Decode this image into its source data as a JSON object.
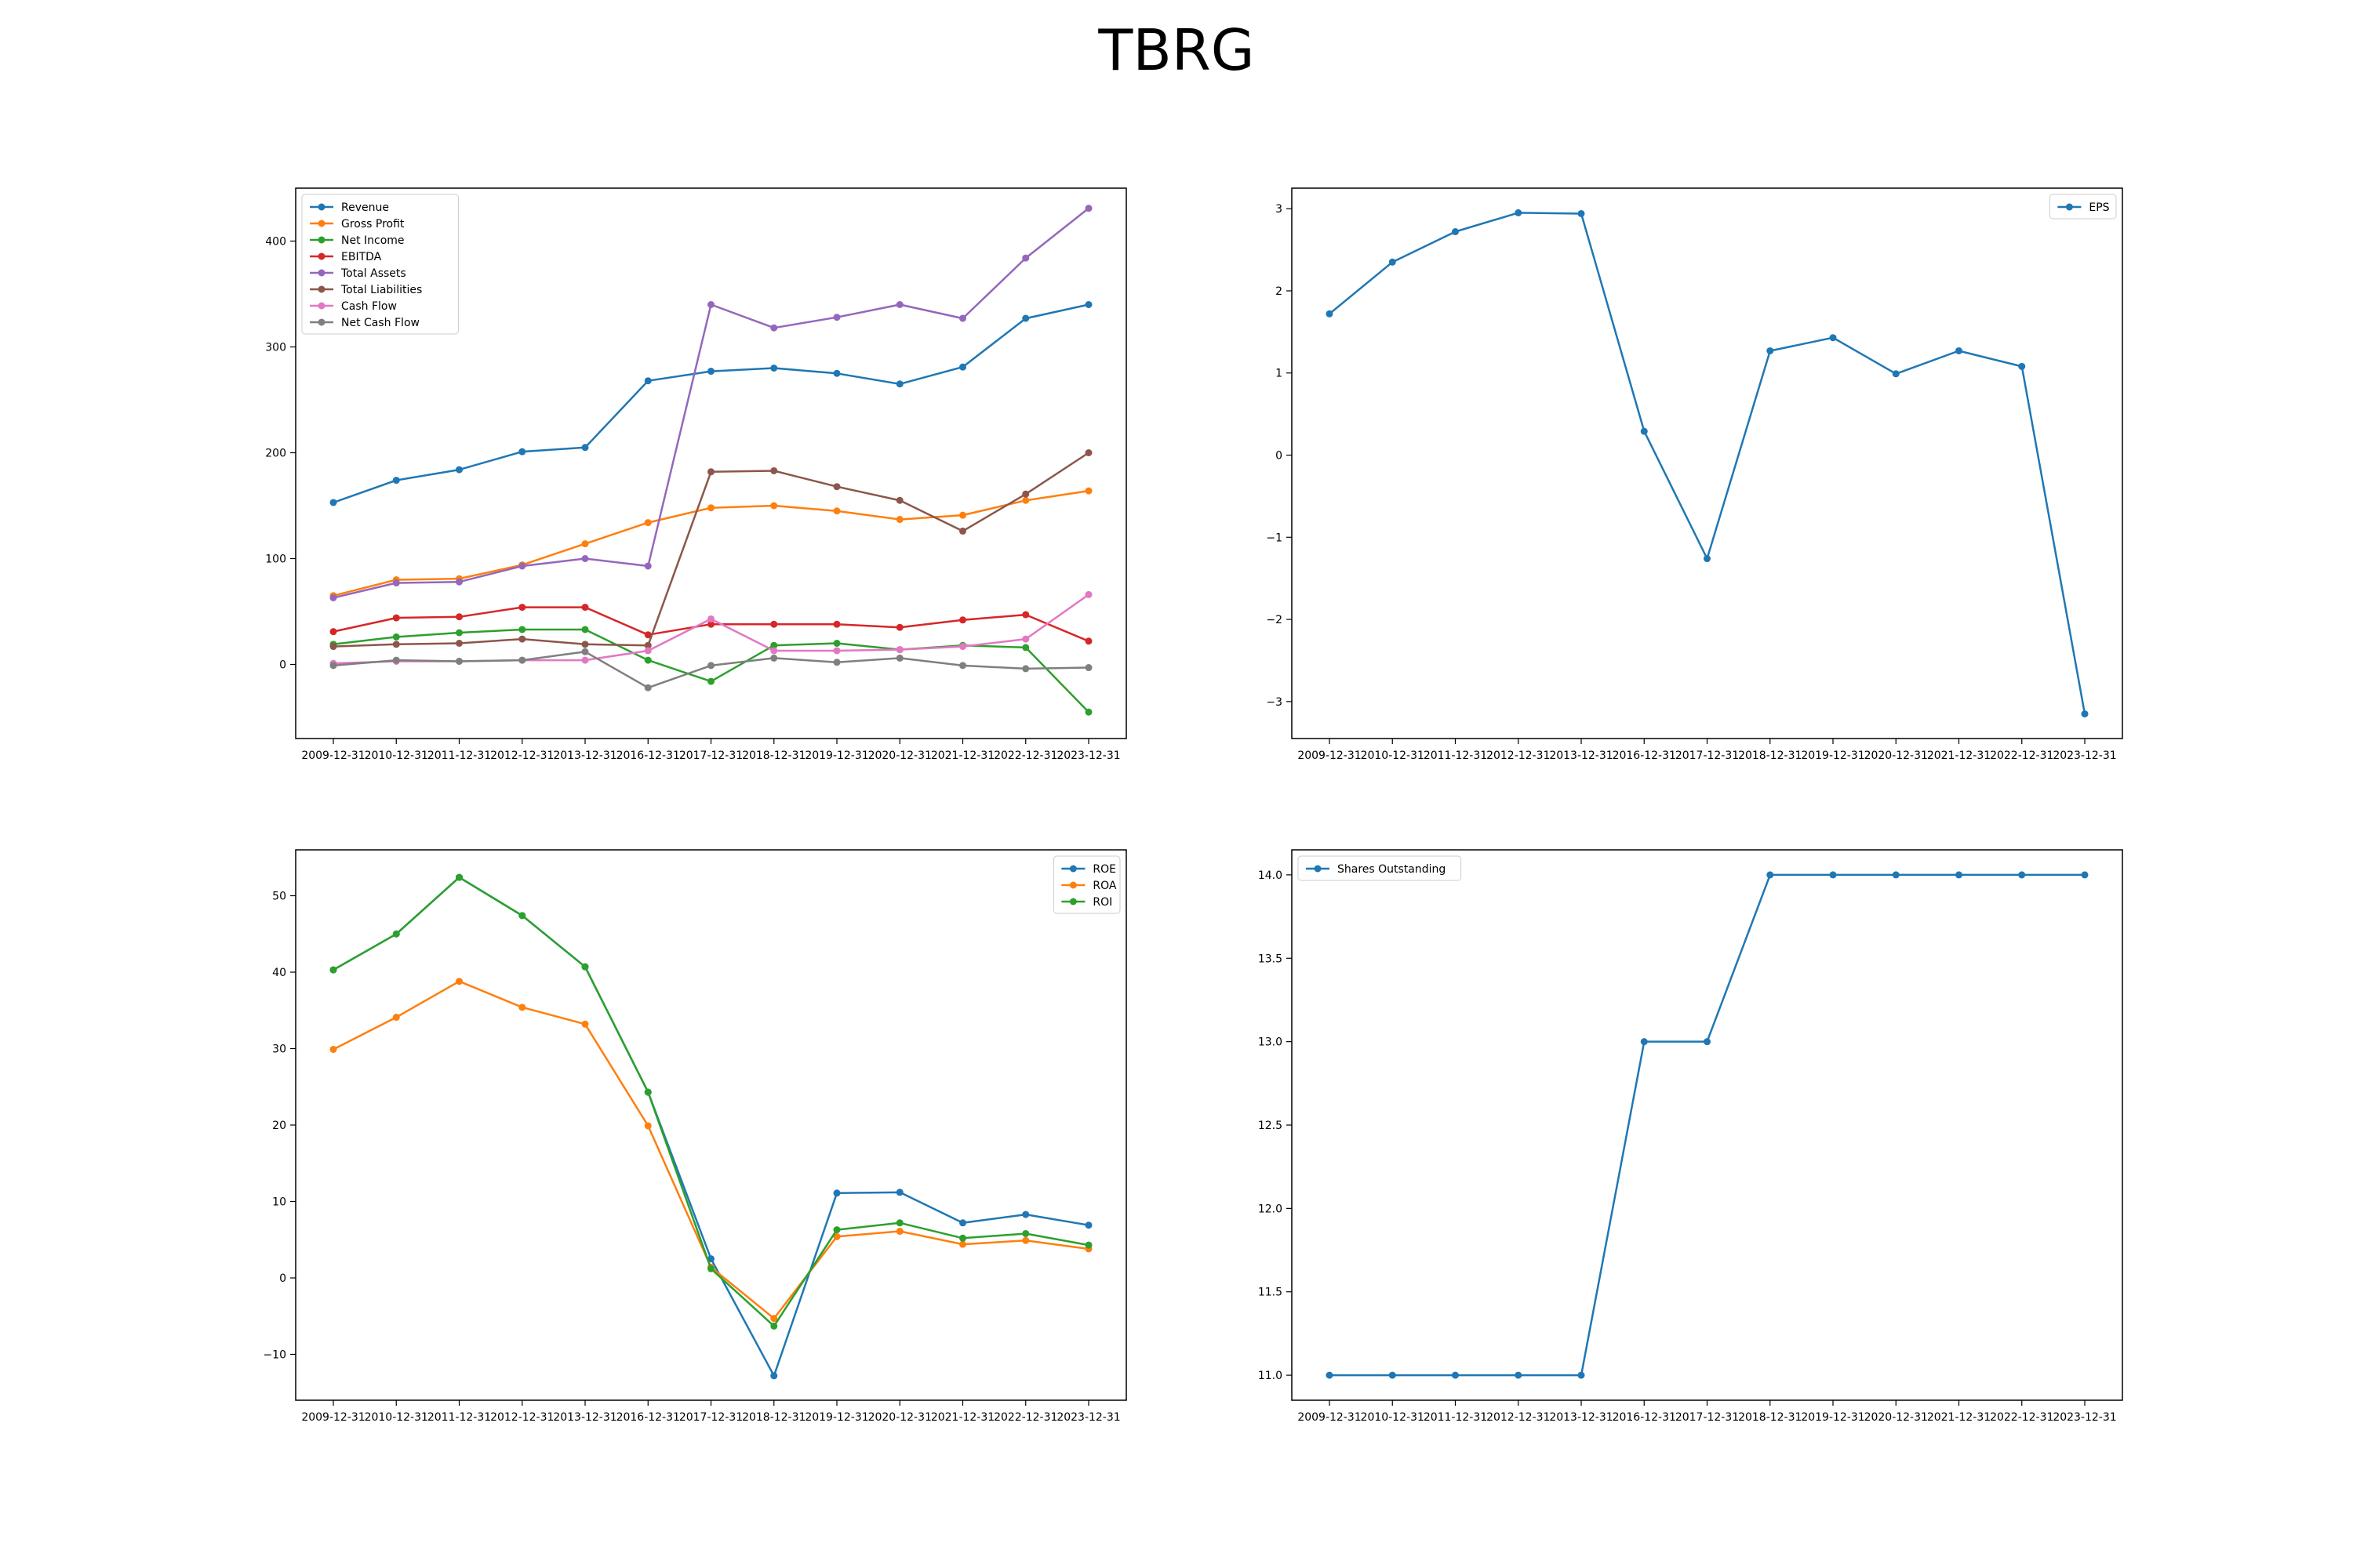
{
  "title": "TBRG",
  "colors": [
    "#1f77b4",
    "#ff7f0e",
    "#2ca02c",
    "#d62728",
    "#9467bd",
    "#8c564b",
    "#e377c2",
    "#7f7f7f"
  ],
  "chart_data": [
    {
      "type": "line",
      "x": [
        "2009-12-31",
        "2010-12-31",
        "2011-12-31",
        "2012-12-31",
        "2013-12-31",
        "2016-12-31",
        "2017-12-31",
        "2018-12-31",
        "2019-12-31",
        "2020-12-31",
        "2021-12-31",
        "2022-12-31",
        "2023-12-31"
      ],
      "ylim": [
        -70,
        450
      ],
      "yticks": [
        0,
        100,
        200,
        300,
        400
      ],
      "legend": "upper-left",
      "series": [
        {
          "name": "Revenue",
          "values": [
            153,
            174,
            184,
            201,
            205,
            268,
            277,
            280,
            275,
            265,
            281,
            327,
            340
          ]
        },
        {
          "name": "Gross Profit",
          "values": [
            65,
            80,
            81,
            94,
            114,
            134,
            148,
            150,
            145,
            137,
            141,
            155,
            164
          ]
        },
        {
          "name": "Net Income",
          "values": [
            19,
            26,
            30,
            33,
            33,
            4,
            -16,
            18,
            20,
            14,
            18,
            16,
            -45
          ]
        },
        {
          "name": "EBITDA",
          "values": [
            31,
            44,
            45,
            54,
            54,
            28,
            38,
            38,
            38,
            35,
            42,
            47,
            22
          ]
        },
        {
          "name": "Total Assets",
          "values": [
            63,
            77,
            78,
            93,
            100,
            93,
            340,
            318,
            328,
            340,
            327,
            384,
            431
          ]
        },
        {
          "name": "Total Liabilities",
          "values": [
            17,
            19,
            20,
            24,
            19,
            18,
            182,
            183,
            168,
            155,
            126,
            161,
            200
          ]
        },
        {
          "name": "Cash Flow",
          "values": [
            1,
            3,
            3,
            4,
            4,
            13,
            43,
            13,
            13,
            14,
            17,
            24,
            66
          ]
        },
        {
          "name": "Net Cash Flow",
          "values": [
            -1,
            4,
            3,
            4,
            12,
            -22,
            -1,
            6,
            2,
            6,
            -1,
            -4,
            -3
          ]
        }
      ]
    },
    {
      "type": "line",
      "x": [
        "2009-12-31",
        "2010-12-31",
        "2011-12-31",
        "2012-12-31",
        "2013-12-31",
        "2016-12-31",
        "2017-12-31",
        "2018-12-31",
        "2019-12-31",
        "2020-12-31",
        "2021-12-31",
        "2022-12-31",
        "2023-12-31"
      ],
      "ylim": [
        -3.45,
        3.25
      ],
      "yticks": [
        -3,
        -2,
        -1,
        0,
        1,
        2,
        3
      ],
      "ytick_labels": [
        "−3",
        "−2",
        "−1",
        "0",
        "1",
        "2",
        "3"
      ],
      "legend": "upper-right",
      "series": [
        {
          "name": "EPS",
          "values": [
            1.72,
            2.35,
            2.72,
            2.95,
            2.94,
            0.29,
            -1.26,
            1.27,
            1.43,
            0.99,
            1.27,
            1.08,
            -3.15
          ]
        }
      ]
    },
    {
      "type": "line",
      "x": [
        "2009-12-31",
        "2010-12-31",
        "2011-12-31",
        "2012-12-31",
        "2013-12-31",
        "2016-12-31",
        "2017-12-31",
        "2018-12-31",
        "2019-12-31",
        "2020-12-31",
        "2021-12-31",
        "2022-12-31",
        "2023-12-31"
      ],
      "ylim": [
        -16,
        56
      ],
      "yticks": [
        -10,
        0,
        10,
        20,
        30,
        40,
        50
      ],
      "ytick_labels": [
        "−10",
        "0",
        "10",
        "20",
        "30",
        "40",
        "50"
      ],
      "legend": "upper-right",
      "series": [
        {
          "name": "ROE",
          "values": [
            40.3,
            45.0,
            52.4,
            47.4,
            40.7,
            24.3,
            2.5,
            -12.8,
            11.1,
            11.2,
            7.2,
            8.3,
            6.9
          ]
        },
        {
          "name": "ROA",
          "values": [
            29.9,
            34.1,
            38.8,
            35.4,
            33.2,
            19.9,
            1.4,
            -5.3,
            5.4,
            6.1,
            4.4,
            4.9,
            3.8
          ]
        },
        {
          "name": "ROI",
          "values": [
            40.3,
            45.0,
            52.4,
            47.4,
            40.7,
            24.3,
            1.2,
            -6.3,
            6.3,
            7.2,
            5.2,
            5.8,
            4.3
          ]
        }
      ]
    },
    {
      "type": "line",
      "x": [
        "2009-12-31",
        "2010-12-31",
        "2011-12-31",
        "2012-12-31",
        "2013-12-31",
        "2016-12-31",
        "2017-12-31",
        "2018-12-31",
        "2019-12-31",
        "2020-12-31",
        "2021-12-31",
        "2022-12-31",
        "2023-12-31"
      ],
      "ylim": [
        10.85,
        14.15
      ],
      "yticks": [
        11.0,
        11.5,
        12.0,
        12.5,
        13.0,
        13.5,
        14.0
      ],
      "ytick_labels": [
        "11.0",
        "11.5",
        "12.0",
        "12.5",
        "13.0",
        "13.5",
        "14.0"
      ],
      "legend": "upper-left",
      "series": [
        {
          "name": "Shares Outstanding",
          "values": [
            11,
            11,
            11,
            11,
            11,
            13,
            13,
            14,
            14,
            14,
            14,
            14,
            14
          ]
        }
      ]
    }
  ]
}
